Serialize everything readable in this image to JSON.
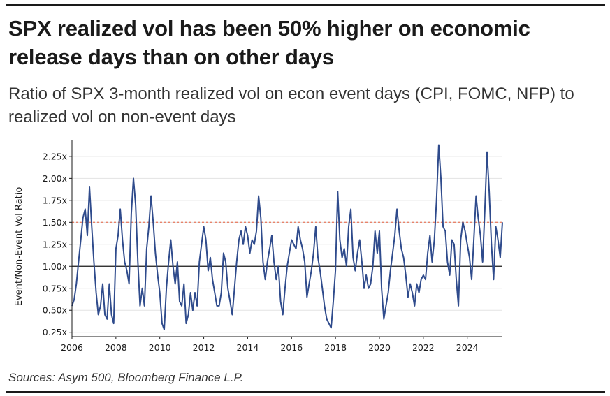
{
  "header": {
    "title": "SPX realized vol has been 50% higher on economic release days than on other days",
    "subtitle": "Ratio of SPX 3-month realized vol on econ event days (CPI, FOMC, NFP) to realized vol on non-event days"
  },
  "footer": {
    "sources": "Sources: Asym 500, Bloomberg Finance L.P."
  },
  "colors": {
    "series": "#2f4b8c",
    "reference_dashed": "#e8836b",
    "baseline": "#1a1a1a",
    "grid": "#e3e3e3"
  },
  "chart_data": {
    "type": "line",
    "title": "",
    "xlabel": "",
    "ylabel": "Event/Non-Event Vol Ratio",
    "x_range": [
      2006.0,
      2025.6
    ],
    "ylim": [
      0.2,
      2.4
    ],
    "grid": "horizontal",
    "x_ticks": [
      {
        "value": 2006,
        "label": "2006"
      },
      {
        "value": 2008,
        "label": "2008"
      },
      {
        "value": 2010,
        "label": "2010"
      },
      {
        "value": 2012,
        "label": "2012"
      },
      {
        "value": 2014,
        "label": "2014"
      },
      {
        "value": 2016,
        "label": "2016"
      },
      {
        "value": 2018,
        "label": "2018"
      },
      {
        "value": 2020,
        "label": "2020"
      },
      {
        "value": 2022,
        "label": "2022"
      },
      {
        "value": 2024,
        "label": "2024"
      }
    ],
    "y_ticks": [
      {
        "value": 0.25,
        "label": "0.25x"
      },
      {
        "value": 0.5,
        "label": "0.50x"
      },
      {
        "value": 0.75,
        "label": "0.75x"
      },
      {
        "value": 1.0,
        "label": "1.00x"
      },
      {
        "value": 1.25,
        "label": "1.25x"
      },
      {
        "value": 1.5,
        "label": "1.50x"
      },
      {
        "value": 1.75,
        "label": "1.75x"
      },
      {
        "value": 2.0,
        "label": "2.00x"
      },
      {
        "value": 2.25,
        "label": "2.25x"
      }
    ],
    "reference_lines": [
      {
        "value": 1.5,
        "style": "dashed"
      },
      {
        "value": 1.0,
        "style": "solid"
      }
    ],
    "series": [
      {
        "x": [
          2006.0,
          2006.1,
          2006.2,
          2006.3,
          2006.4,
          2006.5,
          2006.6,
          2006.7,
          2006.8,
          2006.9,
          2007.0,
          2007.1,
          2007.2,
          2007.3,
          2007.4,
          2007.5,
          2007.6,
          2007.7,
          2007.8,
          2007.9,
          2008.0,
          2008.1,
          2008.2,
          2008.3,
          2008.4,
          2008.5,
          2008.6,
          2008.7,
          2008.8,
          2008.9,
          2009.0,
          2009.1,
          2009.2,
          2009.3,
          2009.4,
          2009.5,
          2009.6,
          2009.7,
          2009.8,
          2009.9,
          2010.0,
          2010.1,
          2010.2,
          2010.3,
          2010.4,
          2010.5,
          2010.6,
          2010.7,
          2010.8,
          2010.9,
          2011.0,
          2011.1,
          2011.2,
          2011.3,
          2011.4,
          2011.5,
          2011.6,
          2011.7,
          2011.8,
          2011.9,
          2012.0,
          2012.1,
          2012.2,
          2012.3,
          2012.4,
          2012.5,
          2012.6,
          2012.7,
          2012.8,
          2012.9,
          2013.0,
          2013.1,
          2013.2,
          2013.3,
          2013.4,
          2013.5,
          2013.6,
          2013.7,
          2013.8,
          2013.9,
          2014.0,
          2014.1,
          2014.2,
          2014.3,
          2014.4,
          2014.5,
          2014.6,
          2014.7,
          2014.8,
          2014.9,
          2015.0,
          2015.1,
          2015.2,
          2015.3,
          2015.4,
          2015.5,
          2015.6,
          2015.7,
          2015.8,
          2015.9,
          2016.0,
          2016.1,
          2016.2,
          2016.3,
          2016.4,
          2016.5,
          2016.6,
          2016.7,
          2016.8,
          2016.9,
          2017.0,
          2017.1,
          2017.2,
          2017.3,
          2017.4,
          2017.5,
          2017.6,
          2017.7,
          2017.8,
          2017.9,
          2018.0,
          2018.1,
          2018.2,
          2018.3,
          2018.4,
          2018.5,
          2018.6,
          2018.7,
          2018.8,
          2018.9,
          2019.0,
          2019.1,
          2019.2,
          2019.3,
          2019.4,
          2019.5,
          2019.6,
          2019.7,
          2019.8,
          2019.9,
          2020.0,
          2020.1,
          2020.2,
          2020.3,
          2020.4,
          2020.5,
          2020.6,
          2020.7,
          2020.8,
          2020.9,
          2021.0,
          2021.1,
          2021.2,
          2021.3,
          2021.4,
          2021.5,
          2021.6,
          2021.7,
          2021.8,
          2021.9,
          2022.0,
          2022.1,
          2022.2,
          2022.3,
          2022.4,
          2022.5,
          2022.6,
          2022.7,
          2022.8,
          2022.9,
          2023.0,
          2023.1,
          2023.2,
          2023.3,
          2023.4,
          2023.5,
          2023.6,
          2023.7,
          2023.8,
          2023.9,
          2024.0,
          2024.1,
          2024.2,
          2024.3,
          2024.4,
          2024.5,
          2024.6,
          2024.7,
          2024.8,
          2024.9,
          2025.0,
          2025.1,
          2025.2,
          2025.3,
          2025.4,
          2025.5,
          2025.6
        ],
        "y": [
          0.55,
          0.62,
          0.8,
          1.05,
          1.3,
          1.55,
          1.65,
          1.35,
          1.9,
          1.45,
          1.05,
          0.7,
          0.45,
          0.55,
          0.8,
          0.45,
          0.4,
          0.8,
          0.45,
          0.35,
          1.2,
          1.35,
          1.65,
          1.3,
          1.05,
          0.95,
          0.8,
          1.6,
          2.0,
          1.7,
          1.05,
          0.55,
          0.75,
          0.55,
          1.2,
          1.45,
          1.8,
          1.5,
          1.15,
          0.9,
          0.7,
          0.35,
          0.28,
          0.75,
          1.05,
          1.3,
          1.0,
          0.8,
          1.05,
          0.6,
          0.55,
          0.8,
          0.35,
          0.45,
          0.7,
          0.5,
          0.7,
          0.55,
          1.05,
          1.25,
          1.45,
          1.3,
          0.95,
          1.1,
          0.85,
          0.7,
          0.55,
          0.55,
          0.7,
          1.15,
          1.05,
          0.75,
          0.6,
          0.45,
          0.75,
          1.05,
          1.3,
          1.4,
          1.25,
          1.45,
          1.35,
          1.15,
          1.3,
          1.25,
          1.4,
          1.8,
          1.55,
          1.05,
          0.85,
          1.05,
          1.2,
          1.35,
          1.05,
          0.85,
          1.0,
          0.6,
          0.45,
          0.75,
          1.0,
          1.15,
          1.3,
          1.25,
          1.2,
          1.45,
          1.3,
          1.2,
          1.05,
          0.65,
          0.8,
          0.95,
          1.15,
          1.45,
          1.1,
          0.95,
          0.75,
          0.55,
          0.4,
          0.35,
          0.3,
          0.6,
          0.95,
          1.85,
          1.3,
          1.1,
          1.2,
          1.0,
          1.45,
          1.65,
          1.1,
          0.95,
          1.15,
          1.3,
          1.05,
          0.75,
          0.9,
          0.75,
          0.8,
          1.0,
          1.4,
          1.15,
          1.4,
          0.75,
          0.4,
          0.55,
          0.7,
          0.95,
          1.15,
          1.35,
          1.65,
          1.4,
          1.2,
          1.1,
          0.9,
          0.65,
          0.8,
          0.7,
          0.55,
          0.8,
          0.7,
          0.85,
          0.9,
          0.85,
          1.15,
          1.35,
          1.05,
          1.3,
          1.75,
          2.38,
          2.0,
          1.45,
          1.4,
          1.05,
          0.9,
          1.3,
          1.25,
          0.85,
          0.55,
          1.3,
          1.5,
          1.4,
          1.25,
          1.1,
          0.85,
          1.3,
          1.8,
          1.55,
          1.35,
          1.05,
          1.65,
          2.3,
          1.85,
          1.25,
          0.85,
          1.45,
          1.3,
          1.1,
          1.5
        ]
      }
    ]
  }
}
